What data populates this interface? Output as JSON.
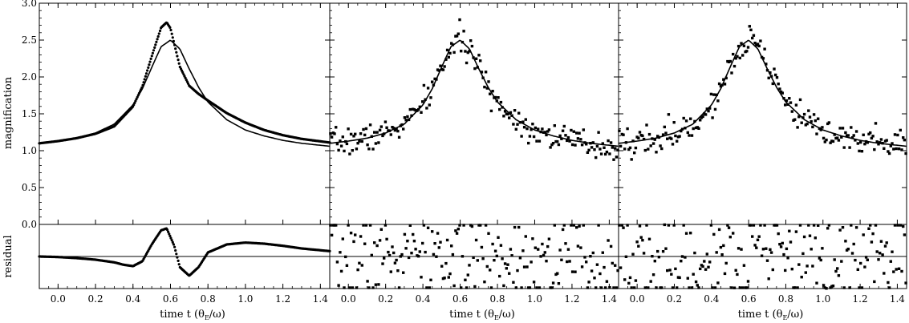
{
  "chart_data": {
    "type": "scatter",
    "ylabel_main": "magnification",
    "ylabel_residual": "residual",
    "xlabel": "time t",
    "xlabel_unit": "(θ",
    "xlabel_sub": "E",
    "xlabel_tail": "/ω)",
    "xlim": [
      -0.1,
      1.45
    ],
    "ylim_main": [
      0.0,
      3.0
    ],
    "ylim_residual": [
      -0.12,
      0.12
    ],
    "xticks": [
      "0.0",
      "0.2",
      "0.4",
      "0.6",
      "0.8",
      "1.0",
      "1.2",
      "1.4"
    ],
    "yticks_main": [
      "0.0",
      "0.5",
      "1.0",
      "1.5",
      "2.0",
      "2.5",
      "3.0"
    ],
    "model": {
      "name": "fit",
      "x": [
        -0.1,
        0.0,
        0.1,
        0.2,
        0.3,
        0.4,
        0.45,
        0.5,
        0.55,
        0.6,
        0.65,
        0.7,
        0.75,
        0.8,
        0.9,
        1.0,
        1.1,
        1.2,
        1.3,
        1.45
      ],
      "y": [
        1.1,
        1.13,
        1.17,
        1.24,
        1.36,
        1.62,
        1.84,
        2.13,
        2.41,
        2.5,
        2.38,
        2.11,
        1.86,
        1.66,
        1.42,
        1.28,
        1.2,
        1.14,
        1.1,
        1.06
      ]
    },
    "panels": [
      {
        "name": "left",
        "data_x": [
          -0.1,
          0.0,
          0.1,
          0.2,
          0.3,
          0.4,
          0.45,
          0.5,
          0.55,
          0.58,
          0.6,
          0.65,
          0.7,
          0.75,
          0.8,
          0.9,
          1.0,
          1.1,
          1.2,
          1.3,
          1.45
        ],
        "data_y": [
          1.1,
          1.13,
          1.17,
          1.23,
          1.33,
          1.6,
          1.87,
          2.28,
          2.67,
          2.74,
          2.66,
          2.14,
          1.88,
          1.77,
          1.68,
          1.51,
          1.38,
          1.28,
          1.21,
          1.16,
          1.11
        ],
        "residual_x": [
          -0.1,
          0.0,
          0.1,
          0.2,
          0.3,
          0.35,
          0.4,
          0.45,
          0.5,
          0.55,
          0.58,
          0.62,
          0.65,
          0.7,
          0.75,
          0.8,
          0.9,
          1.0,
          1.1,
          1.2,
          1.3,
          1.45
        ],
        "residual_y": [
          0.0,
          -0.002,
          -0.006,
          -0.012,
          -0.022,
          -0.031,
          -0.036,
          -0.018,
          0.045,
          0.098,
          0.105,
          0.04,
          -0.04,
          -0.072,
          -0.04,
          0.015,
          0.045,
          0.052,
          0.048,
          0.04,
          0.03,
          0.02
        ]
      },
      {
        "name": "middle",
        "noise_sd": 0.09,
        "seed": 7,
        "n": 210
      },
      {
        "name": "right",
        "noise_sd": 0.1,
        "seed": 19,
        "n": 210
      }
    ]
  }
}
